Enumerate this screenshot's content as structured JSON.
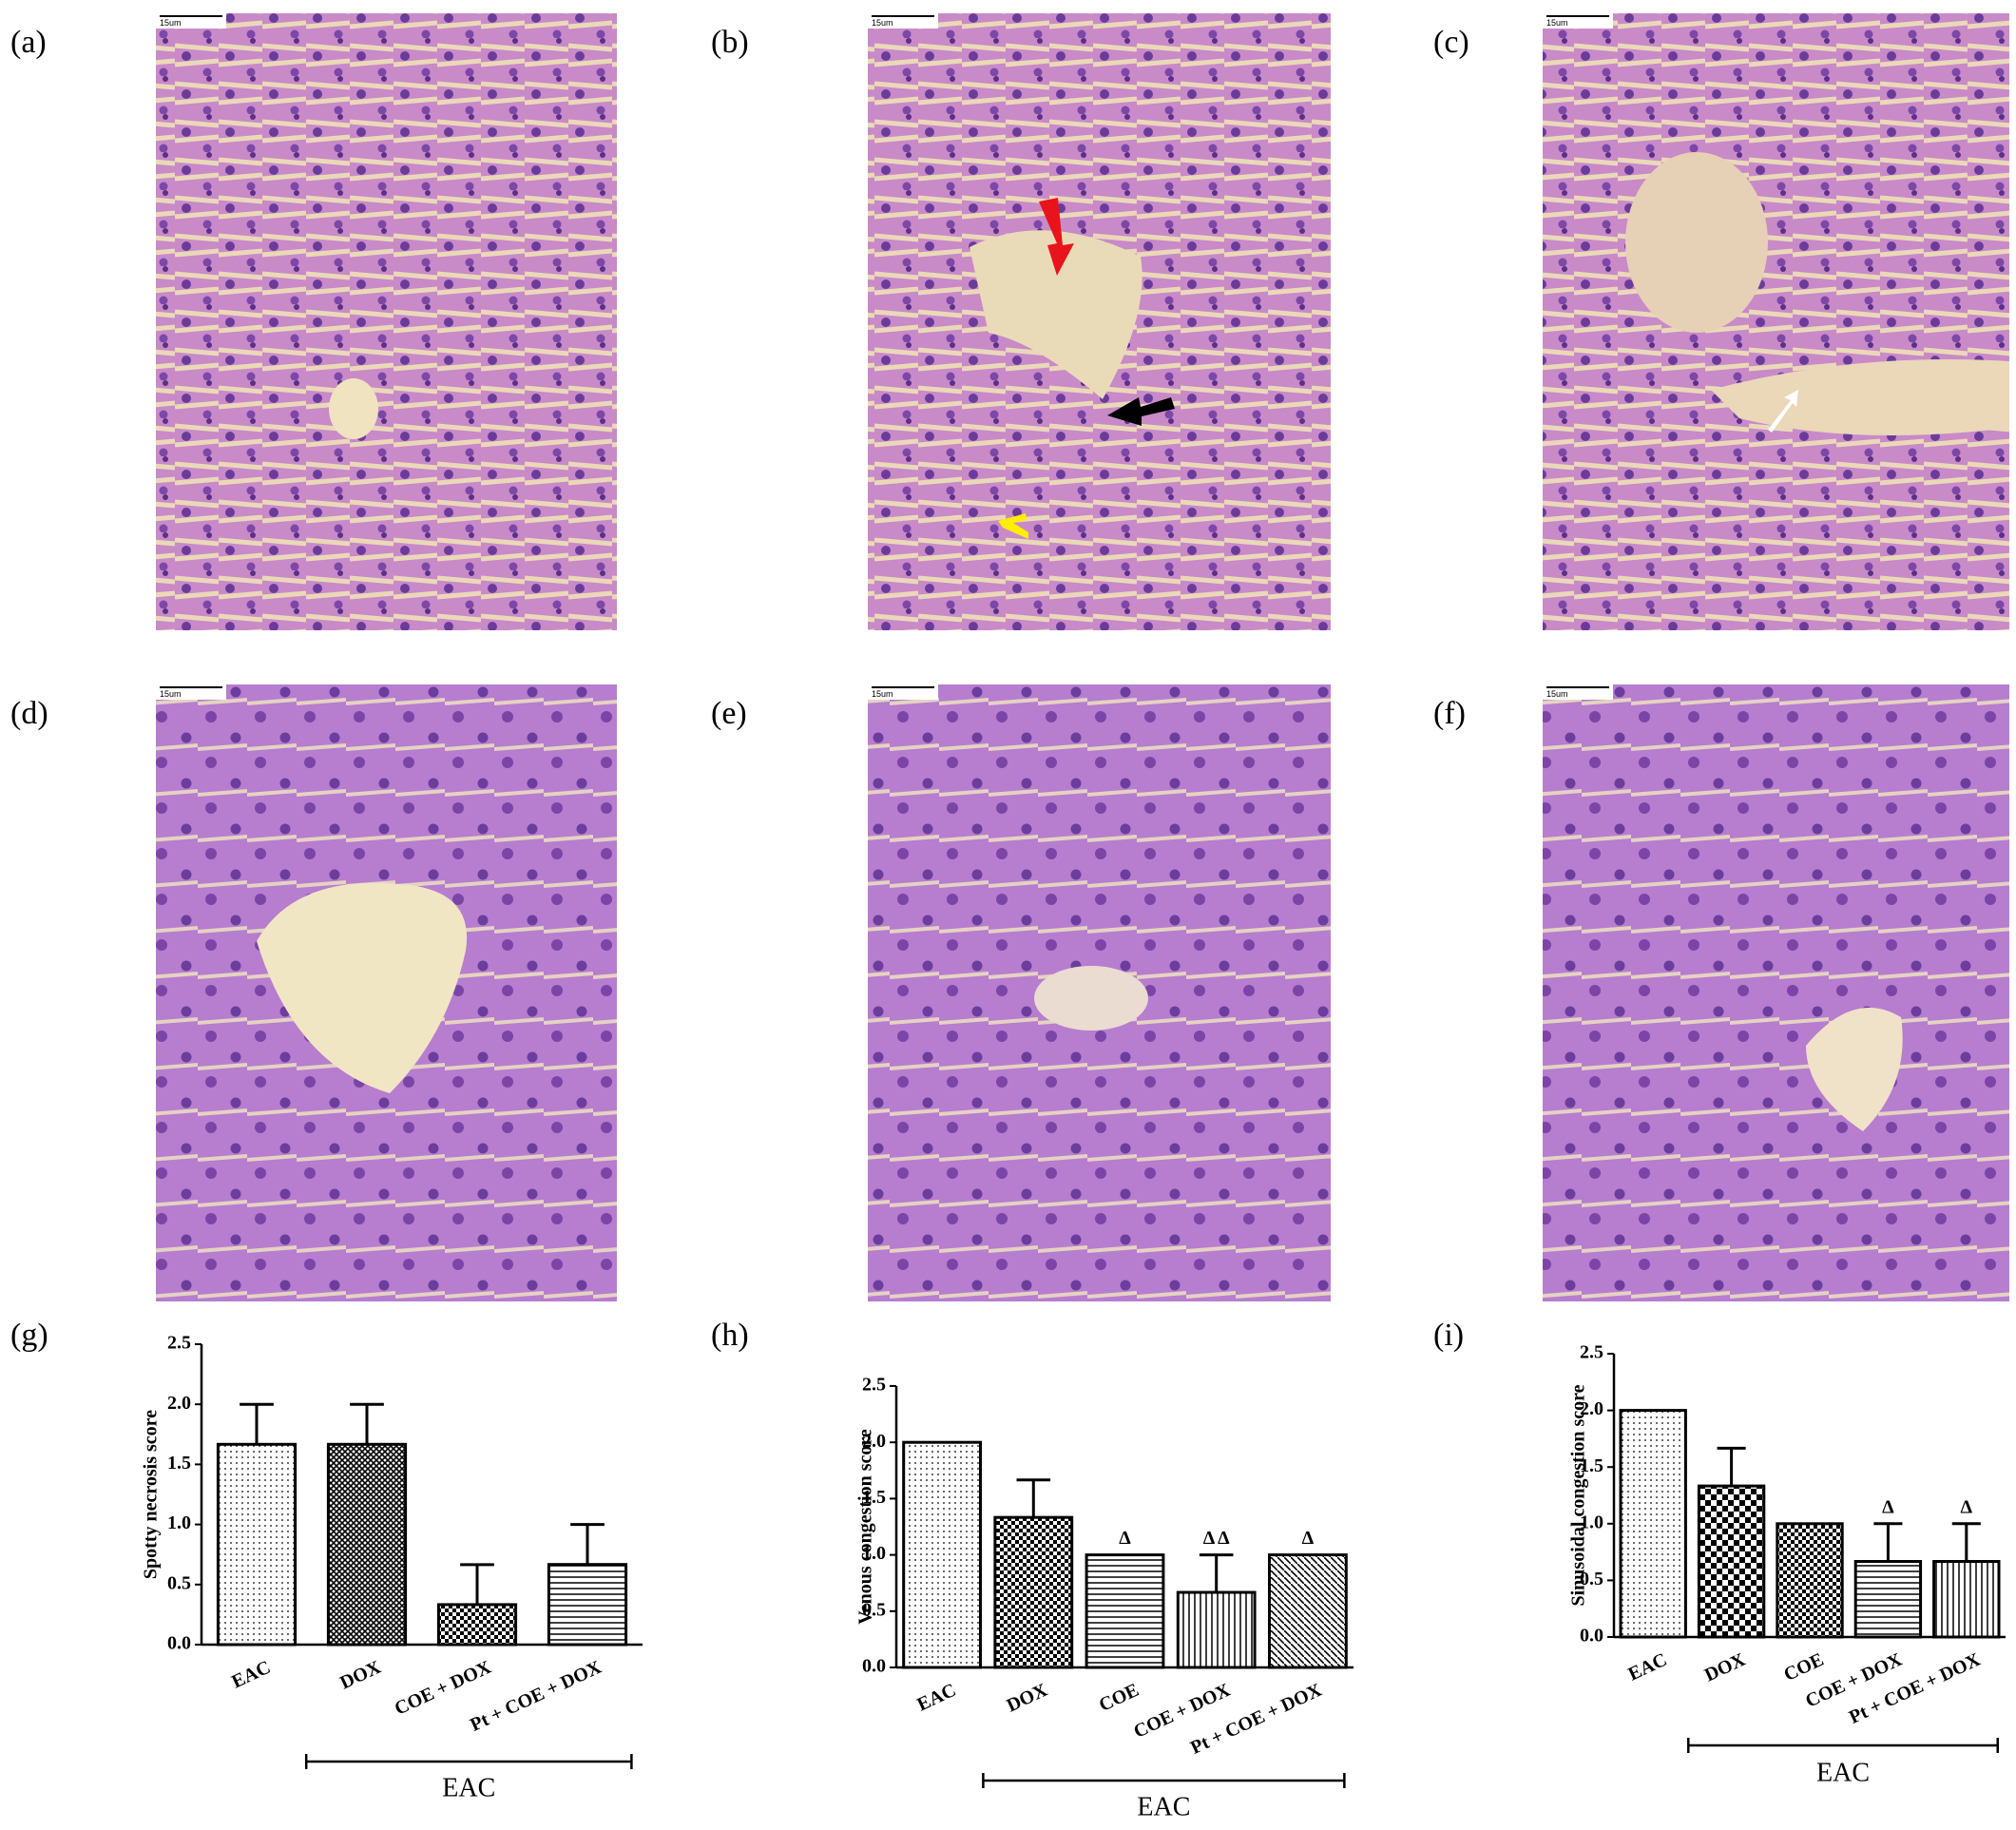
{
  "panel_labels": [
    "(a)",
    "(b)",
    "(c)",
    "(d)",
    "(e)",
    "(f)",
    "(g)",
    "(h)",
    "(i)"
  ],
  "scale_bar_label": "15um",
  "chart_data": [
    {
      "type": "bar",
      "ylabel": "Spotty necrosis score",
      "group_label": "EAC",
      "categories": [
        "EAC",
        "DOX",
        "COE + DOX",
        "Pt + COE + DOX"
      ],
      "values": [
        1.667,
        1.667,
        0.333,
        0.667
      ],
      "errors": [
        0.333,
        0.333,
        0.333,
        0.333
      ],
      "patterns": [
        "dots",
        "crosshatch",
        "checker",
        "hlines"
      ],
      "color": "#000000",
      "ylim": [
        0,
        2.5
      ],
      "yticks": [
        {
          "value": 0,
          "label": "0.0"
        },
        0.5,
        {
          "value": 1,
          "label": "1.0"
        },
        1.5,
        {
          "value": 2,
          "label": "2.0"
        },
        2.5
      ]
    },
    {
      "type": "bar",
      "ylabel": "Venous congestion score",
      "group_label": "EAC",
      "categories": [
        "EAC",
        "DOX",
        "COE",
        "COE + DOX",
        "Pt + COE + DOX"
      ],
      "values": [
        2.0,
        1.333,
        1.0,
        0.667,
        1.0
      ],
      "errors": [
        0,
        0.333,
        0,
        0.333,
        0
      ],
      "annotations": [
        null,
        null,
        "Δ",
        "Δ Δ",
        "Δ"
      ],
      "patterns": [
        "dots",
        "checker",
        "hlines",
        "vlines",
        "diag"
      ],
      "color": "#000000",
      "ylim": [
        0,
        2.5
      ],
      "yticks": [
        {
          "value": 0,
          "label": "0.0"
        },
        0.5,
        {
          "value": 1,
          "label": "1.0"
        },
        1.5,
        {
          "value": 2,
          "label": "2.0"
        },
        2.5
      ]
    },
    {
      "type": "bar",
      "ylabel": "Sinusoidal congestion score",
      "group_label": "EAC",
      "categories": [
        "EAC",
        "DOX",
        "COE",
        "COE + DOX",
        "Pt + COE + DOX"
      ],
      "values": [
        2.0,
        1.333,
        1.0,
        0.667,
        0.667
      ],
      "errors": [
        0,
        0.333,
        0,
        0.333,
        0.333
      ],
      "annotations": [
        null,
        null,
        null,
        "Δ",
        "Δ"
      ],
      "patterns": [
        "dots",
        "bigchecker",
        "checker",
        "hlines",
        "vlines"
      ],
      "color": "#000000",
      "ylim": [
        0,
        2.5
      ],
      "yticks": [
        {
          "value": 0,
          "label": "0.0"
        },
        0.5,
        {
          "value": 1,
          "label": "1.0"
        },
        1.5,
        {
          "value": 2,
          "label": "2.0"
        },
        2.5
      ]
    }
  ]
}
